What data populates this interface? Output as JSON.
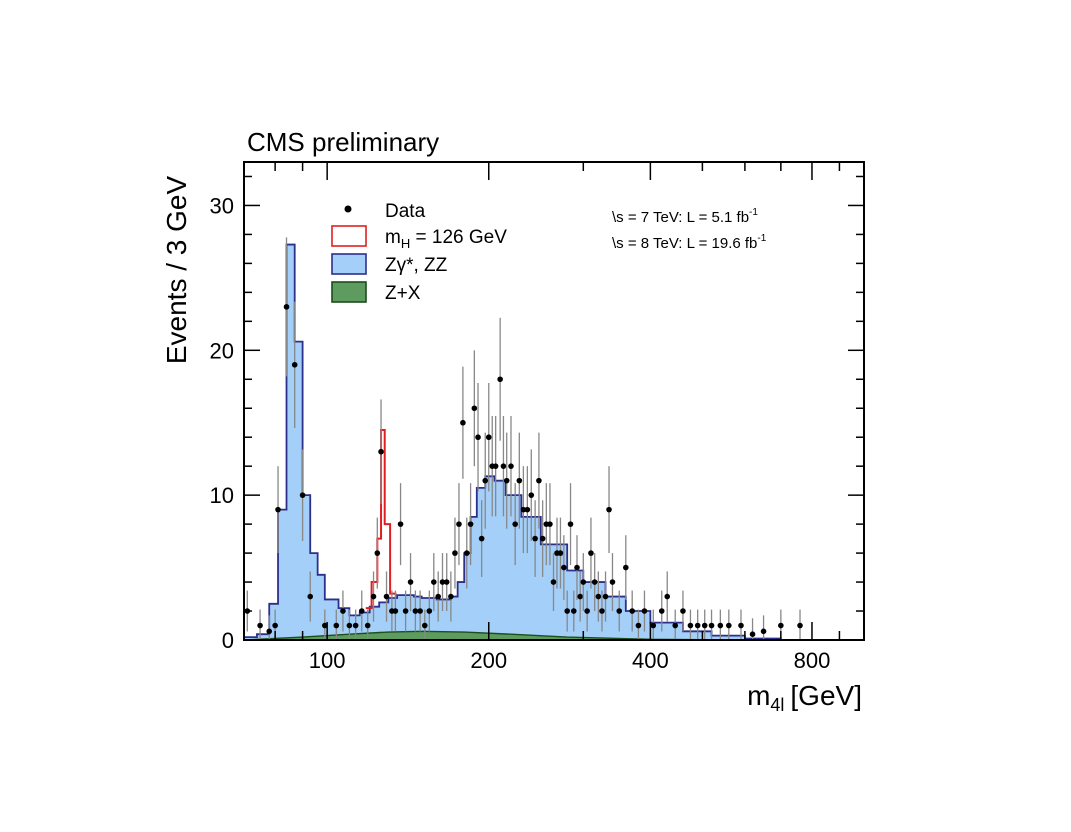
{
  "chart_data": {
    "type": "histogram",
    "header": "CMS preliminary",
    "xlabel": "m",
    "xlabel_sub": "4l",
    "xlabel_unit": "[GeV]",
    "ylabel": "Events / 3 GeV",
    "x_scale": "log",
    "xlim": [
      70,
      1000
    ],
    "ylim": [
      0,
      33
    ],
    "x_ticks": [
      {
        "value": 100,
        "label": "100"
      },
      {
        "value": 200,
        "label": "200"
      },
      {
        "value": 400,
        "label": "400"
      },
      {
        "value": 800,
        "label": "800"
      }
    ],
    "y_ticks": [
      {
        "value": 0,
        "label": "0"
      },
      {
        "value": 10,
        "label": "10"
      },
      {
        "value": 20,
        "label": "20"
      },
      {
        "value": 30,
        "label": "30"
      }
    ],
    "legend": {
      "position": "top-left",
      "entries": [
        {
          "key": "data",
          "label": "Data"
        },
        {
          "key": "signal",
          "label": "m",
          "sub": "H",
          "suffix": " = 126 GeV"
        },
        {
          "key": "zz",
          "label": "Zγ*, ZZ"
        },
        {
          "key": "zx",
          "label": "Z+X"
        }
      ]
    },
    "lumi_lines": [
      {
        "energy": "s = 7 TeV: L =   5.1 fb",
        "sup": "-1"
      },
      {
        "energy": "s = 8 TeV: L = 19.6 fb",
        "sup": "-1"
      }
    ],
    "colors": {
      "zz_fill": "#a3cff8",
      "zz_line": "#2d2f8c",
      "zx_fill": "#5e9b5e",
      "zx_line": "#1e4d1e",
      "signal_line": "#e02020",
      "data": "#000000",
      "errorbar": "#888888"
    },
    "series": [
      {
        "name": "Z+X",
        "points": [
          [
            70,
            0
          ],
          [
            90,
            0.2
          ],
          [
            110,
            0.4
          ],
          [
            130,
            0.55
          ],
          [
            150,
            0.6
          ],
          [
            180,
            0.55
          ],
          [
            220,
            0.4
          ],
          [
            280,
            0.2
          ],
          [
            400,
            0.05
          ],
          [
            600,
            0
          ],
          [
            1000,
            0
          ]
        ]
      },
      {
        "name": "Zγ*, ZZ",
        "points": [
          [
            70,
            0.2
          ],
          [
            74,
            0.4
          ],
          [
            78,
            2.5
          ],
          [
            81,
            9
          ],
          [
            84,
            27.3
          ],
          [
            87,
            20.6
          ],
          [
            90,
            10
          ],
          [
            93,
            6
          ],
          [
            96,
            4.5
          ],
          [
            99,
            2.8
          ],
          [
            105,
            2.2
          ],
          [
            110,
            1.7
          ],
          [
            115,
            1.9
          ],
          [
            120,
            2.3
          ],
          [
            125,
            2.6
          ],
          [
            130,
            2.9
          ],
          [
            135,
            3.1
          ],
          [
            140,
            3.1
          ],
          [
            145,
            3.0
          ],
          [
            150,
            2.9
          ],
          [
            160,
            2.8
          ],
          [
            170,
            3.0
          ],
          [
            175,
            4
          ],
          [
            180,
            6
          ],
          [
            185,
            8.5
          ],
          [
            190,
            10.5
          ],
          [
            197,
            11.3
          ],
          [
            205,
            11
          ],
          [
            215,
            10
          ],
          [
            230,
            8.5
          ],
          [
            250,
            6.6
          ],
          [
            280,
            4.8
          ],
          [
            300,
            4
          ],
          [
            330,
            3
          ],
          [
            360,
            2
          ],
          [
            400,
            1.2
          ],
          [
            460,
            0.6
          ],
          [
            520,
            0.3
          ],
          [
            600,
            0.1
          ],
          [
            700,
            0
          ],
          [
            1000,
            0
          ]
        ]
      },
      {
        "name": "m_H = 126 GeV",
        "points": [
          [
            118,
            2.2
          ],
          [
            121,
            4
          ],
          [
            124,
            7
          ],
          [
            126,
            14.5
          ],
          [
            128,
            8
          ],
          [
            131,
            3.2
          ],
          [
            134,
            3.1
          ]
        ]
      },
      {
        "name": "Data",
        "points": [
          [
            71,
            2
          ],
          [
            75,
            1
          ],
          [
            78,
            0.6
          ],
          [
            80,
            1
          ],
          [
            81,
            9
          ],
          [
            84,
            23
          ],
          [
            87,
            19
          ],
          [
            90,
            10
          ],
          [
            93,
            3
          ],
          [
            99,
            1
          ],
          [
            104,
            1
          ],
          [
            107,
            2
          ],
          [
            110,
            1
          ],
          [
            113,
            1
          ],
          [
            116,
            2
          ],
          [
            119,
            1
          ],
          [
            122,
            3
          ],
          [
            124,
            6
          ],
          [
            126,
            13
          ],
          [
            129,
            3
          ],
          [
            132,
            2
          ],
          [
            134,
            2
          ],
          [
            137,
            8
          ],
          [
            140,
            2
          ],
          [
            143,
            4
          ],
          [
            146,
            2
          ],
          [
            149,
            2
          ],
          [
            152,
            1
          ],
          [
            155,
            2
          ],
          [
            158,
            4
          ],
          [
            161,
            3
          ],
          [
            164,
            4
          ],
          [
            167,
            4
          ],
          [
            170,
            3
          ],
          [
            173,
            6
          ],
          [
            176,
            8
          ],
          [
            179,
            15
          ],
          [
            182,
            6
          ],
          [
            185,
            8
          ],
          [
            188,
            16
          ],
          [
            191,
            14
          ],
          [
            194,
            7
          ],
          [
            197,
            11
          ],
          [
            200,
            14
          ],
          [
            203,
            12
          ],
          [
            206,
            12
          ],
          [
            210,
            18
          ],
          [
            213,
            12
          ],
          [
            216,
            11
          ],
          [
            220,
            12
          ],
          [
            224,
            8
          ],
          [
            228,
            11
          ],
          [
            232,
            9
          ],
          [
            236,
            9
          ],
          [
            240,
            10
          ],
          [
            244,
            7
          ],
          [
            248,
            11
          ],
          [
            252,
            7
          ],
          [
            256,
            8
          ],
          [
            260,
            8
          ],
          [
            264,
            4
          ],
          [
            268,
            6
          ],
          [
            272,
            6
          ],
          [
            276,
            5
          ],
          [
            280,
            2
          ],
          [
            284,
            8
          ],
          [
            288,
            2
          ],
          [
            292,
            5
          ],
          [
            296,
            3
          ],
          [
            300,
            4
          ],
          [
            305,
            2
          ],
          [
            310,
            6
          ],
          [
            315,
            4
          ],
          [
            320,
            3
          ],
          [
            325,
            2
          ],
          [
            330,
            3
          ],
          [
            335,
            9
          ],
          [
            340,
            4
          ],
          [
            350,
            2
          ],
          [
            360,
            5
          ],
          [
            370,
            2
          ],
          [
            380,
            1
          ],
          [
            390,
            2
          ],
          [
            405,
            1
          ],
          [
            420,
            2
          ],
          [
            430,
            3
          ],
          [
            445,
            1
          ],
          [
            460,
            2
          ],
          [
            475,
            1
          ],
          [
            490,
            1
          ],
          [
            505,
            1
          ],
          [
            520,
            1
          ],
          [
            540,
            1
          ],
          [
            560,
            1
          ],
          [
            590,
            1
          ],
          [
            620,
            0.4
          ],
          [
            650,
            0.6
          ],
          [
            700,
            1
          ],
          [
            760,
            1
          ]
        ]
      }
    ]
  }
}
